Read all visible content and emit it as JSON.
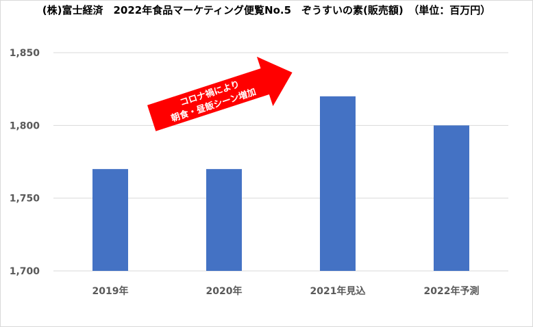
{
  "title": "(株)富士経済　2022年食品マーケティング便覧No.5　ぞうすいの素(販売額)　（単位：百万円）",
  "annotation": {
    "line1": "コロナ禍により",
    "line2": "朝食・昼飯シーン増加",
    "color": "#ff0000"
  },
  "colors": {
    "bar": "#4472c4",
    "grid": "#d9d9d9",
    "text": "#595959"
  },
  "chart_data": {
    "type": "bar",
    "title": "(株)富士経済　2022年食品マーケティング便覧No.5　ぞうすいの素(販売額)　（単位：百万円）",
    "categories": [
      "2019年",
      "2020年",
      "2021年見込",
      "2022年予測"
    ],
    "values": [
      1770,
      1770,
      1820,
      1800
    ],
    "ylim": [
      1700,
      1850
    ],
    "yticks": [
      1700,
      1750,
      1800,
      1850
    ],
    "ytick_labels": [
      "1,700",
      "1,750",
      "1,800",
      "1,850"
    ],
    "xlabel": "",
    "ylabel": "",
    "grid": true,
    "legend": "none"
  }
}
